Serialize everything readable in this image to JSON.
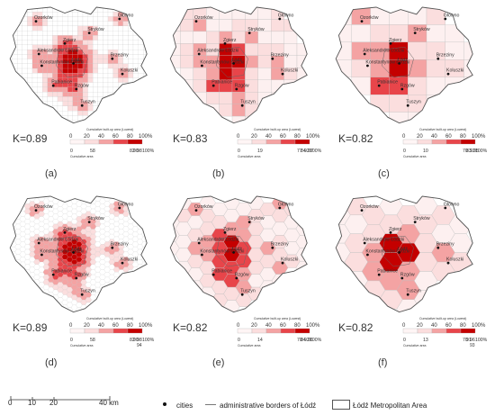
{
  "cities": {
    "ozorkow": "Ozorków",
    "glowno": "Głowno",
    "strykow": "Stryków",
    "zgierz": "Zgierz",
    "aleksandrow": "Aleksandrów Łódzki",
    "konstantynow": "Konstantynów Łódzki",
    "lodz": "Łódź",
    "brzeziny": "Brzeziny",
    "koluszki": "Koluszki",
    "pabianice": "Pabianice",
    "rzgow": "Rzgów",
    "tuszyn": "Tuszyn"
  },
  "panels": [
    {
      "label": "(a)",
      "k": "K=0.89",
      "grid": "square-fine",
      "cum_ticks": [
        "0",
        "58",
        "82",
        "90",
        "98"
      ],
      "cum_extra": "",
      "pct100": "100%"
    },
    {
      "label": "(b)",
      "k": "K=0.83",
      "grid": "square-coarse",
      "cum_ticks": [
        "0",
        "19",
        "77",
        "84",
        "92",
        "97"
      ],
      "cum_extra": "",
      "pct100": "100%"
    },
    {
      "label": "(c)",
      "k": "K=0.82",
      "grid": "square-coarser",
      "cum_ticks": [
        "0",
        "10",
        "70",
        "83",
        "92",
        "95"
      ],
      "cum_extra": "",
      "pct100": "100%"
    },
    {
      "label": "(d)",
      "k": "K=0.89",
      "grid": "hex-fine",
      "cum_ticks": [
        "0",
        "58",
        "82",
        "90",
        "98"
      ],
      "cum_extra": "94",
      "pct100": "100%"
    },
    {
      "label": "(e)",
      "k": "K=0.82",
      "grid": "hex-coarse",
      "cum_ticks": [
        "0",
        "14",
        "70",
        "84",
        "92",
        "96"
      ],
      "cum_extra": "",
      "pct100": "100%"
    },
    {
      "label": "(f)",
      "k": "K=0.82",
      "grid": "hex-coarser",
      "cum_ticks": [
        "0",
        "13",
        "70",
        "91",
        "96"
      ],
      "cum_extra": "93",
      "pct100": "100%"
    }
  ],
  "legend_built": {
    "title": "Cumulative built-up area (Lowest)",
    "ticks": [
      "0",
      "20",
      "40",
      "60",
      "80",
      "100%"
    ]
  },
  "legend_area": {
    "title": "Cumulative area"
  },
  "scale_bar": {
    "ticks": [
      "0",
      "10",
      "20",
      "40 km"
    ]
  },
  "key": {
    "cities": "cities",
    "borders": "administrative borders of Łódź",
    "metro": "Łódź Metropolitan Area"
  },
  "colors": {
    "dark": "#c40000",
    "mid": "#e8454a",
    "light": "#f4a3a3",
    "pale": "#fbdede",
    "grid": "#bdbdbd",
    "border": "#555555"
  }
}
